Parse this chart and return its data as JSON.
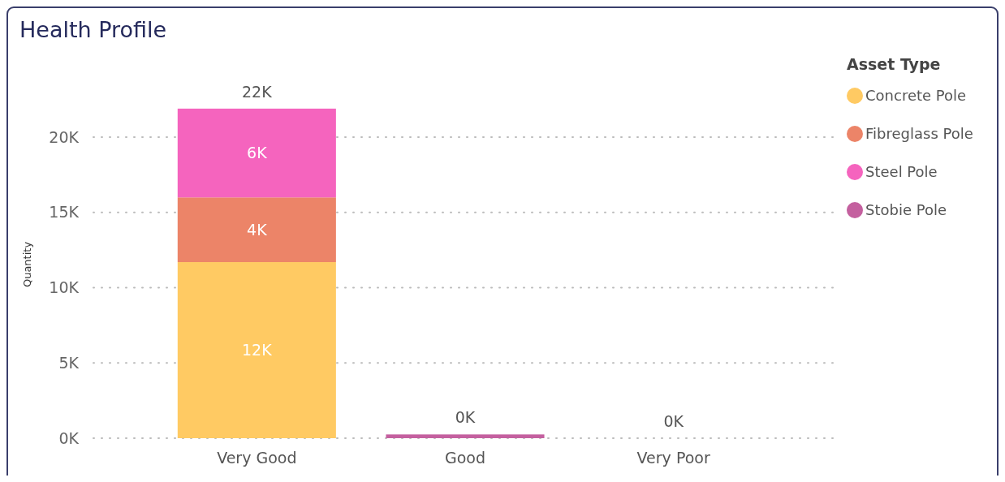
{
  "chart_data": {
    "type": "bar",
    "title": "Health Profile",
    "ylabel": "Quantity",
    "legend_title": "Asset Type",
    "categories": [
      "Very Good",
      "Good",
      "Very Poor"
    ],
    "stacked": true,
    "series": [
      {
        "name": "Concrete Pole",
        "color": "#ffca63",
        "values": [
          11700,
          0,
          0
        ],
        "value_labels": [
          "12K",
          null,
          null
        ]
      },
      {
        "name": "Fibreglass Pole",
        "color": "#ec8468",
        "values": [
          4300,
          0,
          0
        ],
        "value_labels": [
          "4K",
          null,
          null
        ]
      },
      {
        "name": "Steel Pole",
        "color": "#f564be",
        "values": [
          5900,
          0,
          0
        ],
        "value_labels": [
          "6K",
          null,
          null
        ]
      },
      {
        "name": "Stobie Pole",
        "color": "#c4609f",
        "values": [
          0,
          250,
          0
        ]
      }
    ],
    "totals": [
      "22K",
      "0K",
      "0K"
    ],
    "ylim": [
      0,
      22000
    ],
    "yticks": [
      {
        "value": 0,
        "label": "0K"
      },
      {
        "value": 5000,
        "label": "5K"
      },
      {
        "value": 10000,
        "label": "10K"
      },
      {
        "value": 15000,
        "label": "15K"
      },
      {
        "value": 20000,
        "label": "20K"
      }
    ],
    "grid": "y",
    "legend": "top right"
  }
}
